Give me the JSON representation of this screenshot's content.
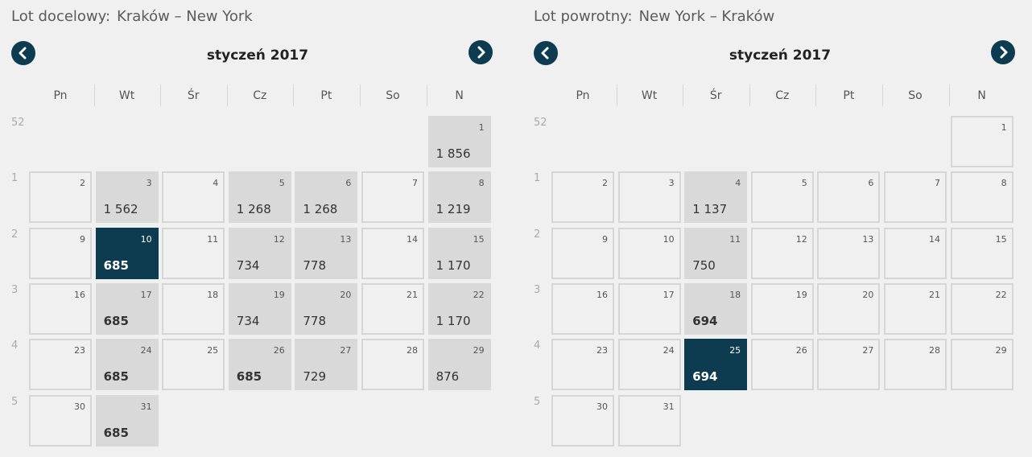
{
  "calendars": [
    {
      "label": "Lot docelowy:",
      "route": "Kraków – New York",
      "month": "styczeń 2017",
      "weekdays": [
        "Pn",
        "Wt",
        "Śr",
        "Cz",
        "Pt",
        "So",
        "N"
      ],
      "weeks": [
        {
          "number": 52,
          "days": [
            null,
            null,
            null,
            null,
            null,
            null,
            {
              "day": 1,
              "price": "1 856"
            }
          ]
        },
        {
          "number": 1,
          "days": [
            {
              "day": 2
            },
            {
              "day": 3,
              "price": "1 562"
            },
            {
              "day": 4
            },
            {
              "day": 5,
              "price": "1 268"
            },
            {
              "day": 6,
              "price": "1 268"
            },
            {
              "day": 7
            },
            {
              "day": 8,
              "price": "1 219"
            }
          ]
        },
        {
          "number": 2,
          "days": [
            {
              "day": 9
            },
            {
              "day": 10,
              "price": "685",
              "cheapest": true,
              "selected": true
            },
            {
              "day": 11
            },
            {
              "day": 12,
              "price": "734"
            },
            {
              "day": 13,
              "price": "778"
            },
            {
              "day": 14
            },
            {
              "day": 15,
              "price": "1 170"
            }
          ]
        },
        {
          "number": 3,
          "days": [
            {
              "day": 16
            },
            {
              "day": 17,
              "price": "685",
              "cheapest": true
            },
            {
              "day": 18
            },
            {
              "day": 19,
              "price": "734"
            },
            {
              "day": 20,
              "price": "778"
            },
            {
              "day": 21
            },
            {
              "day": 22,
              "price": "1 170"
            }
          ]
        },
        {
          "number": 4,
          "days": [
            {
              "day": 23
            },
            {
              "day": 24,
              "price": "685",
              "cheapest": true
            },
            {
              "day": 25
            },
            {
              "day": 26,
              "price": "685",
              "cheapest": true
            },
            {
              "day": 27,
              "price": "729"
            },
            {
              "day": 28
            },
            {
              "day": 29,
              "price": "876"
            }
          ]
        },
        {
          "number": 5,
          "days": [
            {
              "day": 30
            },
            {
              "day": 31,
              "price": "685",
              "cheapest": true
            },
            null,
            null,
            null,
            null,
            null
          ]
        }
      ]
    },
    {
      "label": "Lot powrotny:",
      "route": "New York – Kraków",
      "month": "styczeń 2017",
      "weekdays": [
        "Pn",
        "Wt",
        "Śr",
        "Cz",
        "Pt",
        "So",
        "N"
      ],
      "weeks": [
        {
          "number": 52,
          "days": [
            null,
            null,
            null,
            null,
            null,
            null,
            {
              "day": 1
            }
          ]
        },
        {
          "number": 1,
          "days": [
            {
              "day": 2
            },
            {
              "day": 3
            },
            {
              "day": 4,
              "price": "1 137"
            },
            {
              "day": 5
            },
            {
              "day": 6
            },
            {
              "day": 7
            },
            {
              "day": 8
            }
          ]
        },
        {
          "number": 2,
          "days": [
            {
              "day": 9
            },
            {
              "day": 10
            },
            {
              "day": 11,
              "price": "750"
            },
            {
              "day": 12
            },
            {
              "day": 13
            },
            {
              "day": 14
            },
            {
              "day": 15
            }
          ]
        },
        {
          "number": 3,
          "days": [
            {
              "day": 16
            },
            {
              "day": 17
            },
            {
              "day": 18,
              "price": "694",
              "cheapest": true
            },
            {
              "day": 19
            },
            {
              "day": 20
            },
            {
              "day": 21
            },
            {
              "day": 22
            }
          ]
        },
        {
          "number": 4,
          "days": [
            {
              "day": 23
            },
            {
              "day": 24
            },
            {
              "day": 25,
              "price": "694",
              "cheapest": true,
              "selected": true
            },
            {
              "day": 26
            },
            {
              "day": 27
            },
            {
              "day": 28
            },
            {
              "day": 29
            }
          ]
        },
        {
          "number": 5,
          "days": [
            {
              "day": 30
            },
            {
              "day": 31
            },
            null,
            null,
            null,
            null,
            null
          ]
        }
      ]
    }
  ]
}
